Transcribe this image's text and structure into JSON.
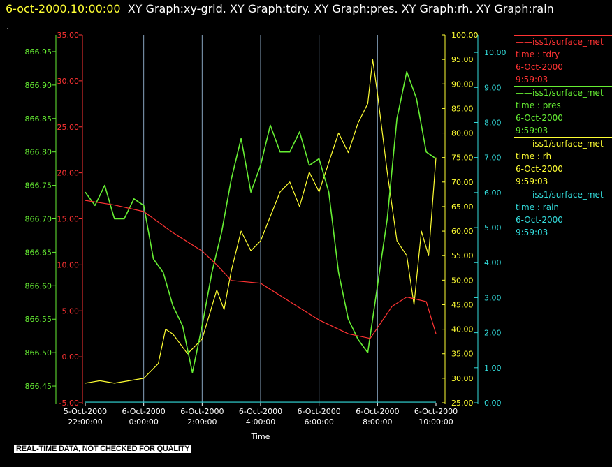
{
  "header": {
    "timestamp": "6-oct-2000,10:00:00",
    "graphs": "XY Graph:xy-grid.  XY Graph:tdry.  XY Graph:pres.  XY Graph:rh.  XY Graph:rain",
    "dot": "."
  },
  "disclaimer": "REAL-TIME DATA, NOT CHECKED FOR QUALITY",
  "colors": {
    "tdry": "#ff3333",
    "pres": "#66ee33",
    "rh": "#ffff33",
    "rain": "#33dddd",
    "grid": "#aaccee"
  },
  "legend": [
    {
      "line": "——iss1/surface_met",
      "var": "time : tdry",
      "date": "6-Oct-2000",
      "time": "9:59:03",
      "color": "#ff3333"
    },
    {
      "line": "——iss1/surface_met",
      "var": "time : pres",
      "date": "6-Oct-2000",
      "time": "9:59:03",
      "color": "#66ee33"
    },
    {
      "line": "——iss1/surface_met",
      "var": "time : rh",
      "date": "6-Oct-2000",
      "time": "9:59:03",
      "color": "#ffff33"
    },
    {
      "line": "——iss1/surface_met",
      "var": "time : rain",
      "date": "6-Oct-2000",
      "time": "9:59:03",
      "color": "#33dddd"
    }
  ],
  "chart_data": {
    "type": "line",
    "xlabel": "Time",
    "x_ticks": [
      {
        "date": "5-Oct-2000",
        "time": "22:00:00"
      },
      {
        "date": "6-Oct-2000",
        "time": "0:00:00"
      },
      {
        "date": "6-Oct-2000",
        "time": "2:00:00"
      },
      {
        "date": "6-Oct-2000",
        "time": "4:00:00"
      },
      {
        "date": "6-Oct-2000",
        "time": "6:00:00"
      },
      {
        "date": "6-Oct-2000",
        "time": "8:00:00"
      },
      {
        "date": "6-Oct-2000",
        "time": "10:00:00"
      }
    ],
    "xlim": [
      "5-Oct-2000 22:00:00",
      "6-Oct-2000 10:00:00"
    ],
    "axes": {
      "tdry": {
        "ylim": [
          -5,
          35
        ],
        "ticks": [
          "-5.00",
          "0.00",
          "5.00",
          "10.00",
          "15.00",
          "20.00",
          "25.00",
          "30.00",
          "35.00"
        ]
      },
      "pres": {
        "ylim": [
          866.425,
          866.975
        ],
        "ticks": [
          "866.45",
          "866.50",
          "866.55",
          "866.60",
          "866.65",
          "866.70",
          "866.75",
          "866.80",
          "866.85",
          "866.90",
          "866.95"
        ]
      },
      "rh": {
        "ylim": [
          25,
          100
        ],
        "ticks": [
          "25.00",
          "30.00",
          "35.00",
          "40.00",
          "45.00",
          "50.00",
          "55.00",
          "60.00",
          "65.00",
          "70.00",
          "75.00",
          "80.00",
          "85.00",
          "90.00",
          "95.00",
          "100.00"
        ]
      },
      "rain": {
        "ylim": [
          0,
          10.5
        ],
        "ticks": [
          "0.00",
          "1.00",
          "2.00",
          "3.00",
          "4.00",
          "5.00",
          "6.00",
          "7.00",
          "8.00",
          "9.00",
          "10.00"
        ]
      }
    },
    "series": [
      {
        "name": "tdry",
        "axis": "tdry",
        "points": [
          [
            "5-Oct-2000 22:00:00",
            17.0
          ],
          [
            "5-Oct-2000 23:00:00",
            16.5
          ],
          [
            "6-Oct-2000 0:00:00",
            15.8
          ],
          [
            "6-Oct-2000 1:00:00",
            13.5
          ],
          [
            "6-Oct-2000 2:00:00",
            11.5
          ],
          [
            "6-Oct-2000 2:30:00",
            10.0
          ],
          [
            "6-Oct-2000 3:00:00",
            8.3
          ],
          [
            "6-Oct-2000 4:00:00",
            8.0
          ],
          [
            "6-Oct-2000 5:00:00",
            6.0
          ],
          [
            "6-Oct-2000 6:00:00",
            4.0
          ],
          [
            "6-Oct-2000 7:00:00",
            2.5
          ],
          [
            "6-Oct-2000 7:45:00",
            2.0
          ],
          [
            "6-Oct-2000 8:30:00",
            5.5
          ],
          [
            "6-Oct-2000 9:00:00",
            6.5
          ],
          [
            "6-Oct-2000 9:40:00",
            6.0
          ],
          [
            "6-Oct-2000 10:00:00",
            2.5
          ]
        ]
      },
      {
        "name": "pres",
        "axis": "pres",
        "points": [
          [
            "5-Oct-2000 22:00:00",
            866.74
          ],
          [
            "5-Oct-2000 22:20:00",
            866.72
          ],
          [
            "5-Oct-2000 22:40:00",
            866.75
          ],
          [
            "5-Oct-2000 23:00:00",
            866.7
          ],
          [
            "5-Oct-2000 23:20:00",
            866.7
          ],
          [
            "5-Oct-2000 23:40:00",
            866.73
          ],
          [
            "6-Oct-2000 0:00:00",
            866.72
          ],
          [
            "6-Oct-2000 0:20:00",
            866.64
          ],
          [
            "6-Oct-2000 0:40:00",
            866.62
          ],
          [
            "6-Oct-2000 1:00:00",
            866.57
          ],
          [
            "6-Oct-2000 1:20:00",
            866.54
          ],
          [
            "6-Oct-2000 1:40:00",
            866.47
          ],
          [
            "6-Oct-2000 2:00:00",
            866.54
          ],
          [
            "6-Oct-2000 2:20:00",
            866.62
          ],
          [
            "6-Oct-2000 2:40:00",
            866.68
          ],
          [
            "6-Oct-2000 3:00:00",
            866.76
          ],
          [
            "6-Oct-2000 3:20:00",
            866.82
          ],
          [
            "6-Oct-2000 3:40:00",
            866.74
          ],
          [
            "6-Oct-2000 4:00:00",
            866.78
          ],
          [
            "6-Oct-2000 4:20:00",
            866.84
          ],
          [
            "6-Oct-2000 4:40:00",
            866.8
          ],
          [
            "6-Oct-2000 5:00:00",
            866.8
          ],
          [
            "6-Oct-2000 5:20:00",
            866.83
          ],
          [
            "6-Oct-2000 5:40:00",
            866.78
          ],
          [
            "6-Oct-2000 6:00:00",
            866.79
          ],
          [
            "6-Oct-2000 6:20:00",
            866.74
          ],
          [
            "6-Oct-2000 6:40:00",
            866.62
          ],
          [
            "6-Oct-2000 7:00:00",
            866.55
          ],
          [
            "6-Oct-2000 7:20:00",
            866.52
          ],
          [
            "6-Oct-2000 7:40:00",
            866.5
          ],
          [
            "6-Oct-2000 8:00:00",
            866.6
          ],
          [
            "6-Oct-2000 8:20:00",
            866.7
          ],
          [
            "6-Oct-2000 8:40:00",
            866.85
          ],
          [
            "6-Oct-2000 9:00:00",
            866.92
          ],
          [
            "6-Oct-2000 9:20:00",
            866.88
          ],
          [
            "6-Oct-2000 9:40:00",
            866.8
          ],
          [
            "6-Oct-2000 10:00:00",
            866.79
          ]
        ]
      },
      {
        "name": "rh",
        "axis": "rh",
        "points": [
          [
            "5-Oct-2000 22:00:00",
            29.0
          ],
          [
            "5-Oct-2000 22:30:00",
            29.5
          ],
          [
            "5-Oct-2000 23:00:00",
            29.0
          ],
          [
            "5-Oct-2000 23:30:00",
            29.5
          ],
          [
            "6-Oct-2000 0:00:00",
            30.0
          ],
          [
            "6-Oct-2000 0:30:00",
            33.0
          ],
          [
            "6-Oct-2000 0:45:00",
            40.0
          ],
          [
            "6-Oct-2000 1:00:00",
            39.0
          ],
          [
            "6-Oct-2000 1:30:00",
            35.0
          ],
          [
            "6-Oct-2000 2:00:00",
            38.0
          ],
          [
            "6-Oct-2000 2:30:00",
            48.0
          ],
          [
            "6-Oct-2000 2:45:00",
            44.0
          ],
          [
            "6-Oct-2000 3:00:00",
            52.0
          ],
          [
            "6-Oct-2000 3:20:00",
            60.0
          ],
          [
            "6-Oct-2000 3:40:00",
            56.0
          ],
          [
            "6-Oct-2000 4:00:00",
            58.0
          ],
          [
            "6-Oct-2000 4:20:00",
            63.0
          ],
          [
            "6-Oct-2000 4:40:00",
            68.0
          ],
          [
            "6-Oct-2000 5:00:00",
            70.0
          ],
          [
            "6-Oct-2000 5:20:00",
            65.0
          ],
          [
            "6-Oct-2000 5:40:00",
            72.0
          ],
          [
            "6-Oct-2000 6:00:00",
            68.0
          ],
          [
            "6-Oct-2000 6:20:00",
            74.0
          ],
          [
            "6-Oct-2000 6:40:00",
            80.0
          ],
          [
            "6-Oct-2000 7:00:00",
            76.0
          ],
          [
            "6-Oct-2000 7:20:00",
            82.0
          ],
          [
            "6-Oct-2000 7:40:00",
            86.0
          ],
          [
            "6-Oct-2000 7:50:00",
            95.0
          ],
          [
            "6-Oct-2000 8:00:00",
            88.0
          ],
          [
            "6-Oct-2000 8:20:00",
            72.0
          ],
          [
            "6-Oct-2000 8:40:00",
            58.0
          ],
          [
            "6-Oct-2000 9:00:00",
            55.0
          ],
          [
            "6-Oct-2000 9:15:00",
            45.0
          ],
          [
            "6-Oct-2000 9:30:00",
            60.0
          ],
          [
            "6-Oct-2000 9:45:00",
            55.0
          ],
          [
            "6-Oct-2000 10:00:00",
            75.0
          ]
        ]
      },
      {
        "name": "rain",
        "axis": "rain",
        "points": [
          [
            "5-Oct-2000 22:00:00",
            0.0
          ],
          [
            "6-Oct-2000 10:00:00",
            0.0
          ]
        ]
      }
    ]
  }
}
